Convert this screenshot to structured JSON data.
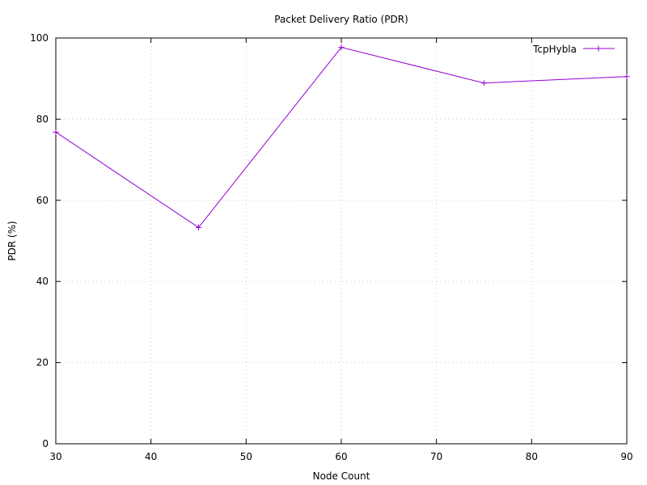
{
  "chart_data": {
    "type": "line",
    "title": "Packet Delivery Ratio (PDR)",
    "xlabel": "Node Count",
    "ylabel": "PDR (%)",
    "xlim": [
      30,
      90
    ],
    "ylim": [
      0,
      100
    ],
    "xticks": [
      30,
      40,
      50,
      60,
      70,
      80,
      90
    ],
    "yticks": [
      0,
      20,
      40,
      60,
      80,
      100
    ],
    "grid": true,
    "legend_position": "top-right",
    "series": [
      {
        "name": "TcpHybla",
        "color": "#9400d3",
        "marker": "plus",
        "points": [
          {
            "x": 30,
            "y": 76.8
          },
          {
            "x": 45,
            "y": 53.3
          },
          {
            "x": 60,
            "y": 97.7
          },
          {
            "x": 75,
            "y": 88.9
          },
          {
            "x": 90,
            "y": 90.5
          }
        ]
      }
    ]
  }
}
